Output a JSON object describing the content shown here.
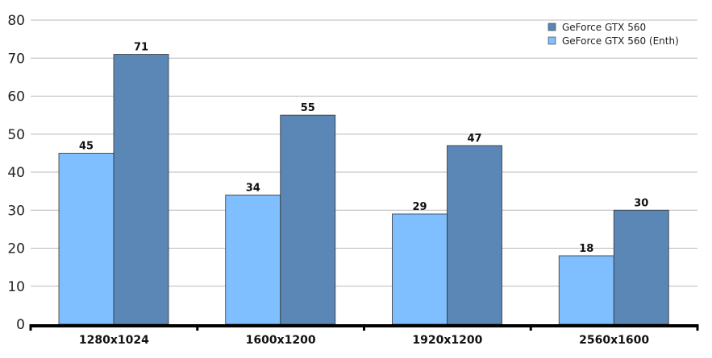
{
  "chart_data": {
    "type": "bar",
    "categories": [
      "1280x1024",
      "1600x1200",
      "1920x1200",
      "2560x1600"
    ],
    "series": [
      {
        "name": "GeForce GTX 560 (Enth)",
        "values": [
          45,
          34,
          29,
          18
        ],
        "color": "#80bfff"
      },
      {
        "name": "GeForce GTX 560",
        "values": [
          71,
          55,
          47,
          30
        ],
        "color": "#5a87b5"
      }
    ],
    "legend_order": [
      1,
      0
    ],
    "ylim": [
      0,
      80
    ],
    "yticks": [
      0,
      10,
      20,
      30,
      40,
      50,
      60,
      70,
      80
    ],
    "grid": true,
    "legend_position": "top-right",
    "data_labels": true,
    "title": "",
    "xlabel": "",
    "ylabel": ""
  }
}
